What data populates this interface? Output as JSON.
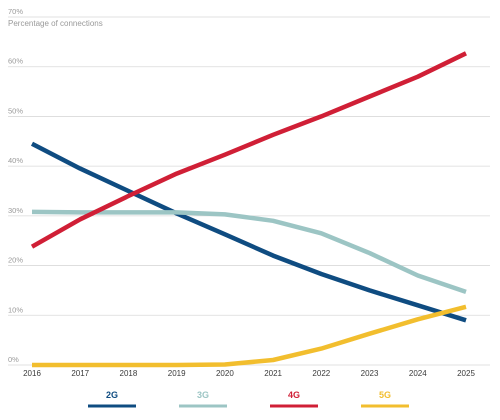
{
  "chart_data": {
    "type": "line",
    "ylabel": "Percentage of connections",
    "ylim": [
      0,
      70
    ],
    "y_ticks": [
      "0%",
      "10%",
      "20%",
      "30%",
      "40%",
      "50%",
      "60%",
      "70%"
    ],
    "grid": true,
    "legend_placement": "bottom",
    "x": [
      "2016",
      "2017",
      "2018",
      "2019",
      "2020",
      "2021",
      "2022",
      "2023",
      "2024",
      "2025"
    ],
    "series": [
      {
        "name": "2G",
        "color": "#0f4c81",
        "values": [
          44.5,
          39.5,
          35,
          30.5,
          26.3,
          22,
          18.3,
          15,
          12,
          9
        ]
      },
      {
        "name": "3G",
        "color": "#9cc5c4",
        "values": [
          30.8,
          30.7,
          30.7,
          30.7,
          30.3,
          29,
          26.5,
          22.5,
          18,
          14.7
        ]
      },
      {
        "name": "4G",
        "color": "#d01f36",
        "values": [
          23.8,
          29.3,
          34,
          38.5,
          42.3,
          46.3,
          50,
          54,
          58,
          62.7
        ]
      },
      {
        "name": "5G",
        "color": "#f2be2e",
        "values": [
          0,
          0,
          0,
          0,
          0.1,
          1,
          3.3,
          6.3,
          9.2,
          11.7
        ]
      }
    ]
  }
}
